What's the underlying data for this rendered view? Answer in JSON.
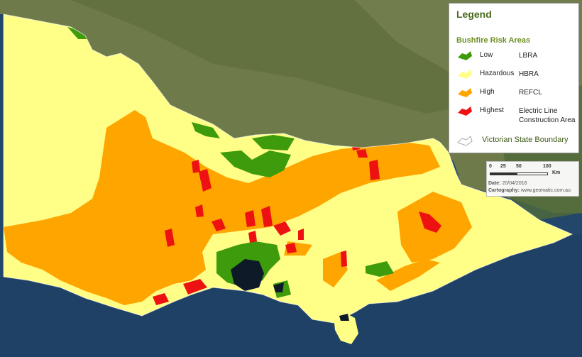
{
  "map": {
    "colors": {
      "sea": "#23466b",
      "land_north": "#6e7a4a",
      "hazardous": "#ffff88",
      "high": "#ffa500",
      "low": "#3e9b0c",
      "highest": "#ee1111",
      "water_bay": "#0e1a28",
      "boundary": "#ffffff"
    }
  },
  "legend": {
    "title": "Legend",
    "subtitle": "Bushfire Risk Areas",
    "items": [
      {
        "label": "Low",
        "category": "LBRA",
        "color": "#3e9b0c",
        "icon": "risk-low-swatch"
      },
      {
        "label": "Hazardous",
        "category": "HBRA",
        "color": "#ffff88",
        "icon": "risk-hazardous-swatch"
      },
      {
        "label": "High",
        "category": "REFCL",
        "color": "#ffa500",
        "icon": "risk-high-swatch"
      },
      {
        "label": "Highest",
        "category": "Electric Line Construction Area",
        "color": "#ee1111",
        "icon": "risk-highest-swatch"
      }
    ],
    "boundary": {
      "label": "Victorian State Boundary",
      "icon": "state-boundary-swatch"
    }
  },
  "scale": {
    "ticks": [
      "0",
      "25",
      "50",
      "100"
    ],
    "unit": "Km",
    "date_label": "Date:",
    "date_value": "20/04/2016",
    "cartography_label": "Cartography:",
    "cartography_value": "www.geomatic.com.au"
  }
}
